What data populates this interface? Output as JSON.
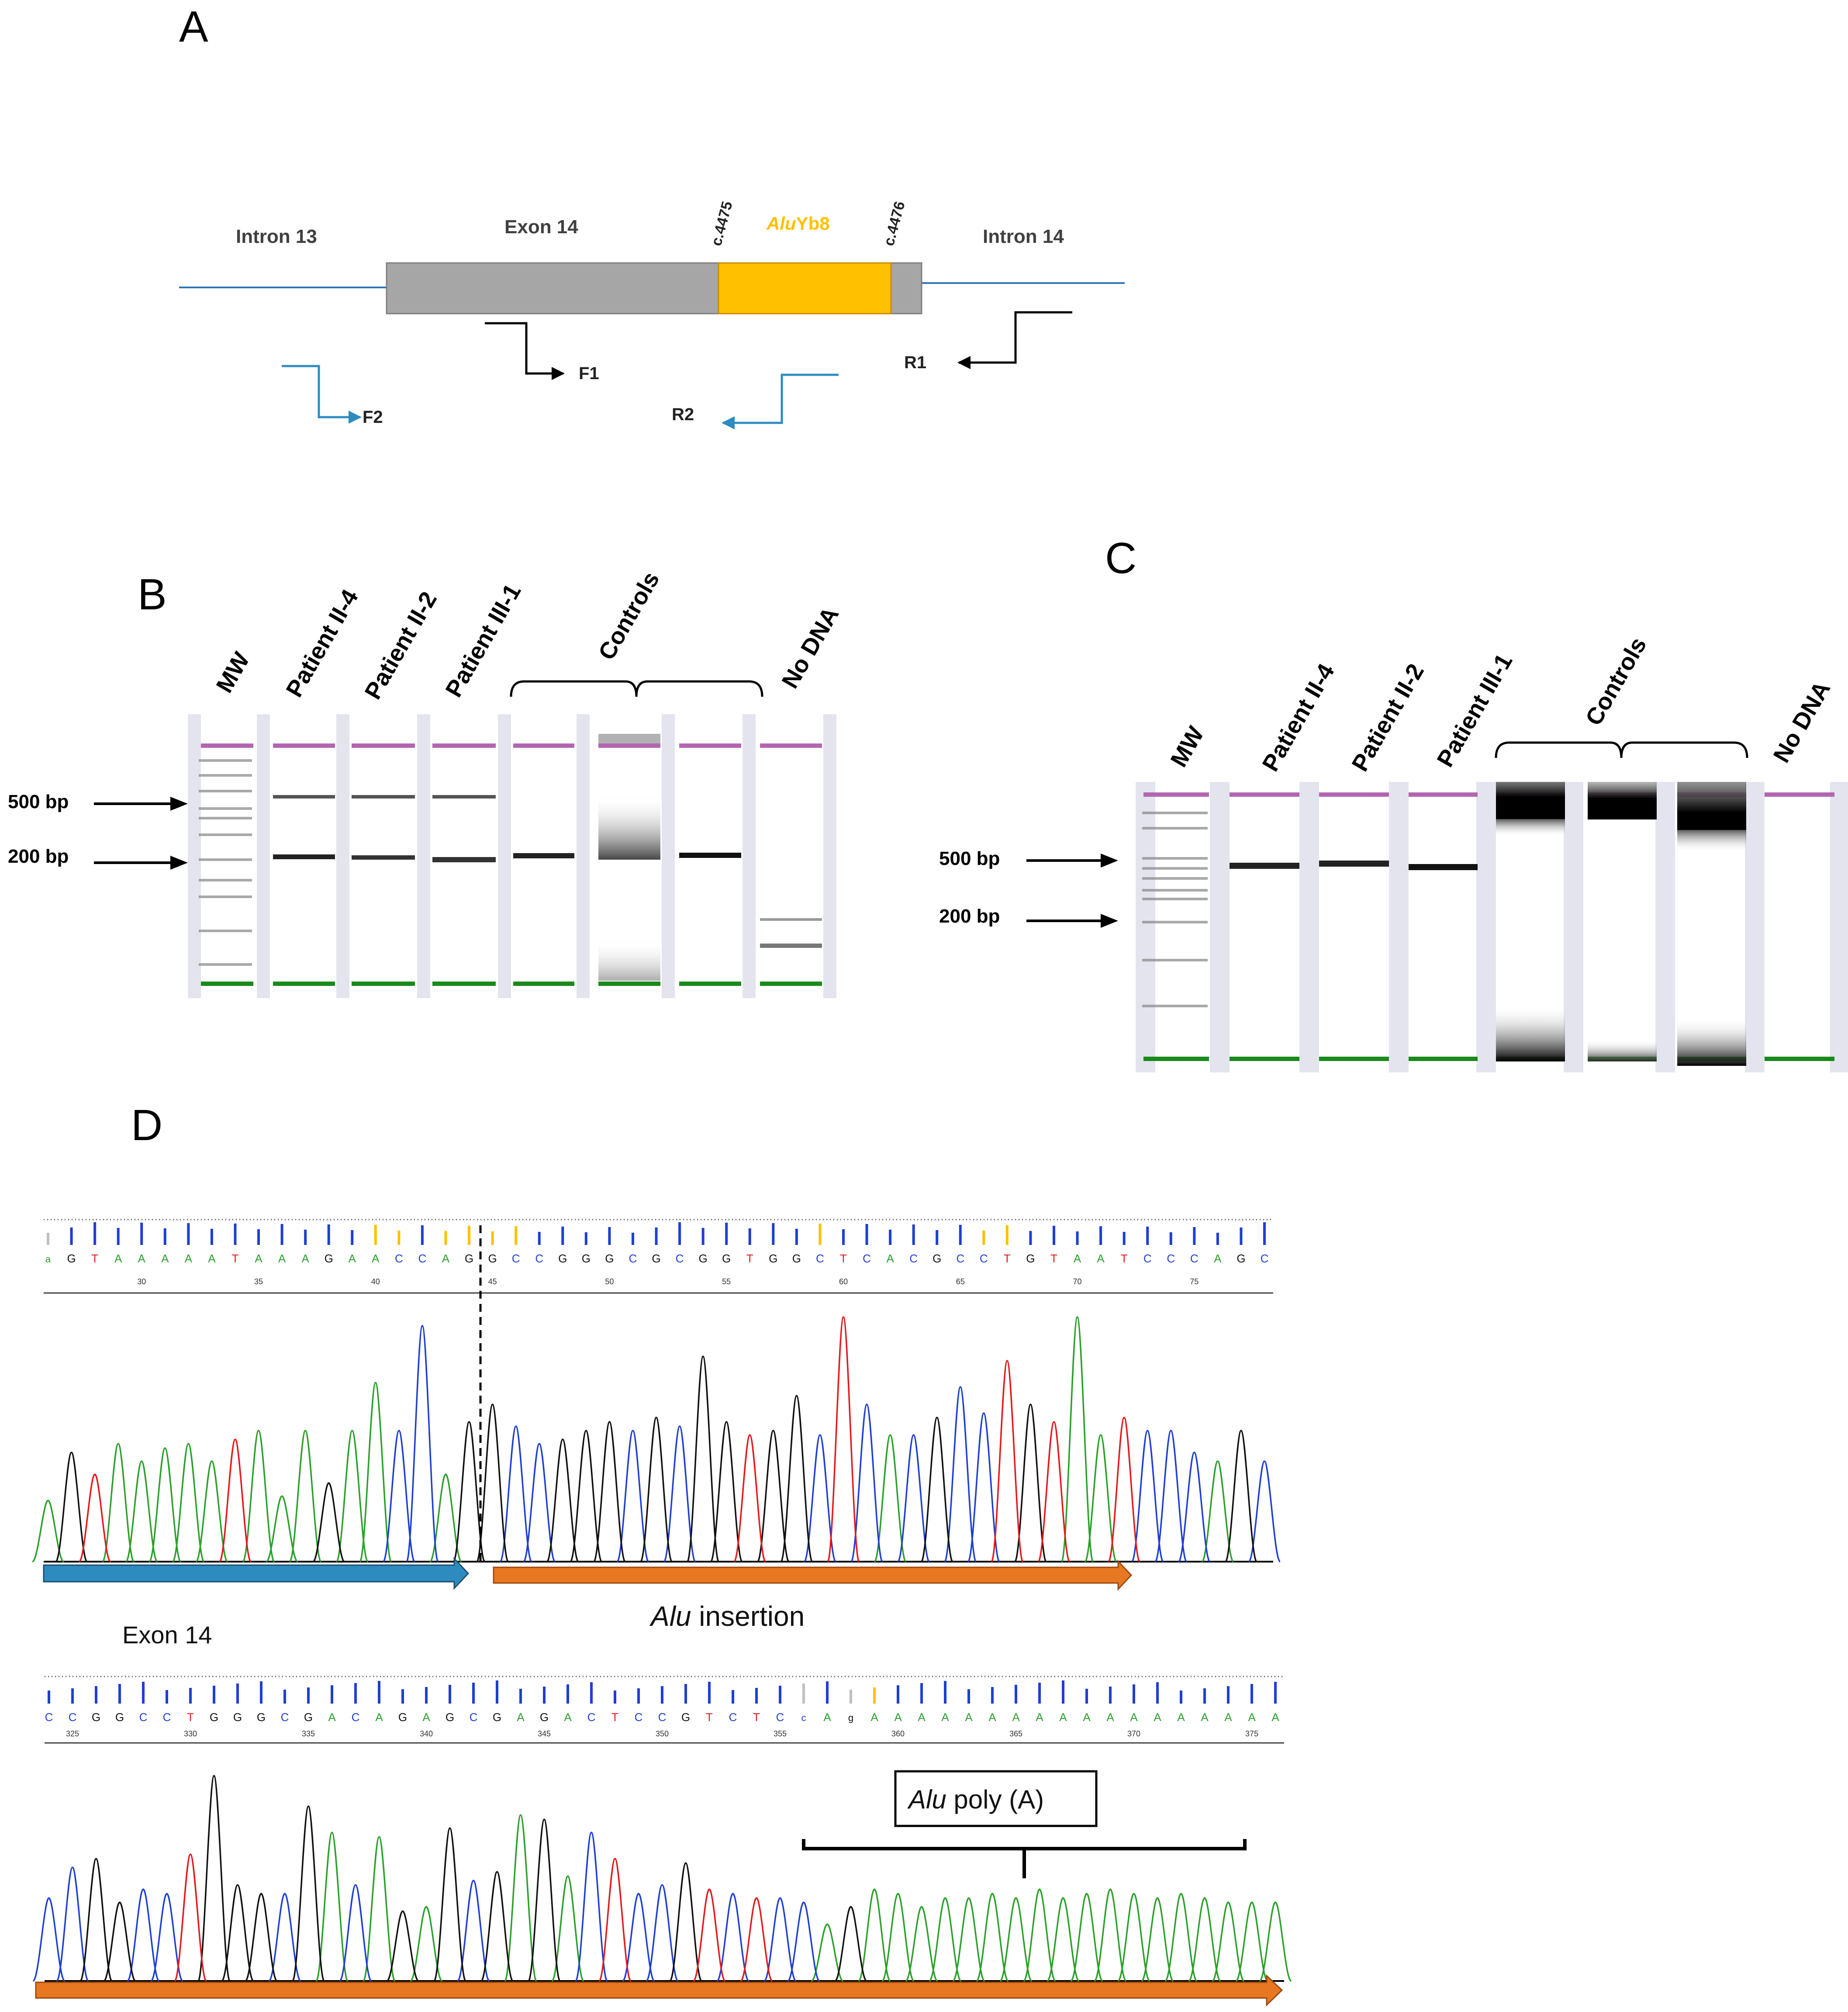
{
  "panels": {
    "a": "A",
    "b": "B",
    "c": "C",
    "d": "D"
  },
  "panel_a": {
    "intron13": "Intron 13",
    "exon14": "Exon 14",
    "intron14": "Intron 14",
    "alu_prefix": "Alu",
    "alu_suffix": "Yb8",
    "site_left": "c.4475",
    "site_right": "c.4476",
    "primers": [
      "F1",
      "F2",
      "R1",
      "R2"
    ]
  },
  "gel_b": {
    "lanes": [
      "MW",
      "Patient II-4",
      "Patient II-2",
      "Patient III-1",
      "Controls",
      "No DNA"
    ],
    "markers": [
      "500 bp",
      "200 bp"
    ]
  },
  "gel_c": {
    "lanes": [
      "MW",
      "Patient II-4",
      "Patient II-2",
      "Patient III-1",
      "Controls",
      "No DNA"
    ],
    "markers": [
      "500 bp",
      "200 bp"
    ]
  },
  "seq1": {
    "bases": "aGTAAAAATAAAGAACCAGGCCGGGCGCGGTGGCTCACGCCTGTAATCCCAGC",
    "ticks": [
      "30",
      "35",
      "40",
      "45",
      "50",
      "55",
      "60",
      "65",
      "70",
      "75"
    ],
    "exon_label": "Exon 14",
    "alu_italic": "Alu",
    "alu_rest": " insertion"
  },
  "seq2": {
    "bases": "CCGGCCTGGGCGACAGAGCGAGACTCCGTCTCcAgAAAAAAAAAAAAAAAAAA",
    "ticks": [
      "325",
      "330",
      "335",
      "340",
      "345",
      "350",
      "355",
      "360",
      "365",
      "370",
      "375"
    ],
    "box_italic": "Alu",
    "box_rest": " poly (A)"
  },
  "colors": {
    "A": "#2ca02c",
    "C": "#1f3fd1",
    "G": "#111111",
    "T": "#e31a1c",
    "alu": "#FFC000",
    "exon": "#a6a6a6",
    "intron_line": "#2e75b6",
    "arrow_blue": "#2e8bc0",
    "arrow_orange": "#e87722",
    "gel_top": "#b266b2",
    "gel_bottom": "#1a8a1a"
  }
}
